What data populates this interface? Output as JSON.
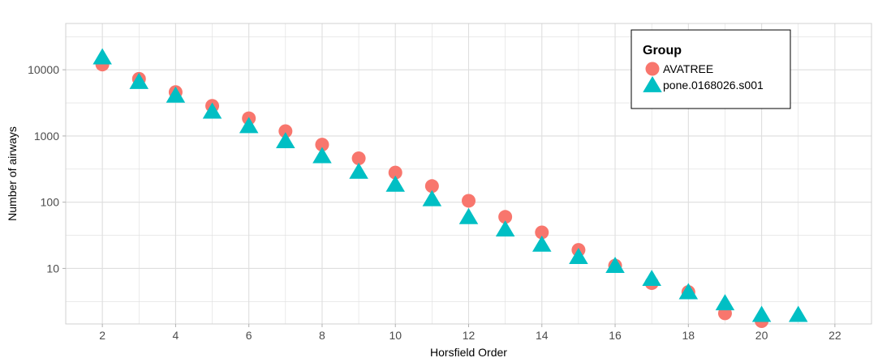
{
  "chart_data": {
    "type": "scatter",
    "xlabel": "Horsfield Order",
    "ylabel": "Number of airways",
    "x_ticks": [
      2,
      4,
      6,
      8,
      10,
      12,
      14,
      16,
      18,
      20,
      22
    ],
    "y_ticks": [
      10,
      100,
      1000,
      10000
    ],
    "y_tick_labels": [
      "10",
      "100",
      "1000",
      "10000"
    ],
    "xlim": [
      1,
      23
    ],
    "ylim": [
      1.45,
      50000
    ],
    "y_scale": "log",
    "grid": true,
    "legend": {
      "title": "Group",
      "position": "top-right"
    },
    "series": [
      {
        "name": "AVATREE",
        "marker": "circle",
        "color": "#F8766D",
        "x": [
          2,
          3,
          4,
          5,
          6,
          7,
          8,
          9,
          10,
          11,
          12,
          13,
          14,
          15,
          16,
          17,
          18,
          19,
          20
        ],
        "y": [
          12000,
          7300,
          4600,
          2850,
          1850,
          1180,
          740,
          460,
          280,
          175,
          105,
          60,
          35,
          19,
          11,
          6,
          4.4,
          2.1,
          1.6
        ]
      },
      {
        "name": "pone.0168026.s001",
        "marker": "triangle",
        "color": "#00BFC4",
        "x": [
          2,
          3,
          4,
          5,
          6,
          7,
          8,
          9,
          10,
          11,
          12,
          13,
          14,
          15,
          16,
          17,
          18,
          19,
          20,
          21
        ],
        "y": [
          15500,
          6600,
          4100,
          2350,
          1420,
          840,
          500,
          290,
          185,
          112,
          60,
          39,
          23,
          15,
          11,
          7,
          4.4,
          3,
          2,
          2
        ]
      }
    ]
  }
}
